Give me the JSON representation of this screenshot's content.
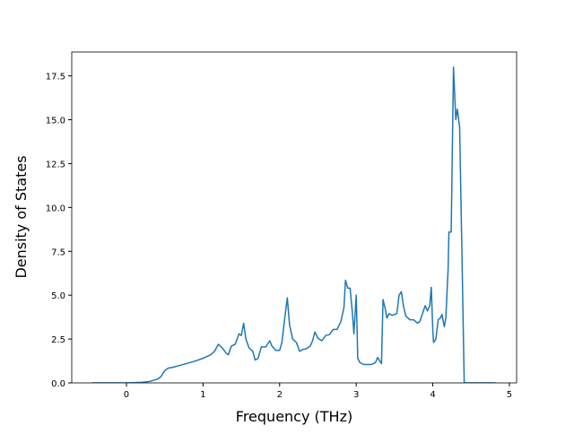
{
  "chart_data": {
    "type": "line",
    "xlabel": "Frequency (THz)",
    "ylabel": "Density of States",
    "xlim": [
      -0.714,
      5.094
    ],
    "ylim": [
      0,
      18.86
    ],
    "xticks": [
      0,
      1,
      2,
      3,
      4,
      5
    ],
    "yticks": [
      {
        "value": 0,
        "label": "0.0"
      },
      {
        "value": 2.5,
        "label": "2.5"
      },
      {
        "value": 5,
        "label": "5.0"
      },
      {
        "value": 7.5,
        "label": "7.5"
      },
      {
        "value": 10,
        "label": "10.0"
      },
      {
        "value": 12.5,
        "label": "12.5"
      },
      {
        "value": 15,
        "label": "15.0"
      },
      {
        "value": 17.5,
        "label": "17.5"
      }
    ],
    "color": "#1f77b4",
    "x": [
      -0.45,
      -0.2,
      0,
      0.1,
      0.2,
      0.3,
      0.4,
      0.45,
      0.5,
      0.55,
      0.6,
      0.7,
      0.8,
      0.9,
      1.0,
      1.1,
      1.15,
      1.2,
      1.25,
      1.3,
      1.33,
      1.37,
      1.42,
      1.47,
      1.5,
      1.53,
      1.56,
      1.6,
      1.65,
      1.68,
      1.72,
      1.76,
      1.82,
      1.87,
      1.9,
      1.95,
      2.0,
      2.03,
      2.07,
      2.1,
      2.13,
      2.17,
      2.22,
      2.26,
      2.3,
      2.35,
      2.4,
      2.43,
      2.46,
      2.5,
      2.55,
      2.6,
      2.65,
      2.7,
      2.75,
      2.8,
      2.84,
      2.86,
      2.89,
      2.92,
      2.95,
      2.97,
      3.0,
      3.01,
      3.02,
      3.05,
      3.1,
      3.2,
      3.25,
      3.28,
      3.3,
      3.33,
      3.35,
      3.38,
      3.4,
      3.43,
      3.47,
      3.53,
      3.56,
      3.59,
      3.62,
      3.65,
      3.7,
      3.75,
      3.8,
      3.83,
      3.87,
      3.9,
      3.93,
      3.96,
      3.98,
      4.0,
      4.01,
      4.04,
      4.07,
      4.1,
      4.12,
      4.15,
      4.17,
      4.2,
      4.21,
      4.24,
      4.27,
      4.3,
      4.32,
      4.35,
      4.38,
      4.41,
      4.6,
      4.82
    ],
    "values": [
      0,
      0,
      0,
      0.01,
      0.03,
      0.08,
      0.2,
      0.35,
      0.7,
      0.85,
      0.88,
      1.0,
      1.12,
      1.25,
      1.4,
      1.6,
      1.8,
      2.2,
      2.0,
      1.7,
      1.6,
      2.1,
      2.2,
      2.8,
      2.7,
      3.4,
      2.5,
      2.0,
      1.8,
      1.3,
      1.4,
      2.05,
      2.05,
      2.4,
      2.1,
      1.85,
      1.85,
      2.3,
      3.8,
      4.85,
      3.3,
      2.5,
      2.3,
      1.8,
      1.9,
      1.95,
      2.1,
      2.4,
      2.9,
      2.55,
      2.4,
      2.7,
      2.75,
      3.05,
      3.05,
      3.5,
      4.3,
      5.85,
      5.4,
      5.4,
      4.0,
      2.8,
      5.0,
      3.3,
      1.4,
      1.15,
      1.05,
      1.05,
      1.15,
      1.45,
      1.3,
      1.1,
      4.75,
      4.2,
      3.7,
      3.95,
      3.85,
      3.95,
      5.0,
      5.2,
      4.3,
      3.8,
      3.6,
      3.6,
      3.4,
      3.5,
      4.0,
      4.4,
      4.1,
      4.4,
      5.45,
      3.0,
      2.3,
      2.5,
      3.6,
      3.7,
      3.9,
      3.2,
      3.7,
      6.5,
      8.6,
      8.6,
      18.0,
      15.0,
      15.6,
      14.6,
      7.5,
      0,
      0,
      0
    ]
  }
}
